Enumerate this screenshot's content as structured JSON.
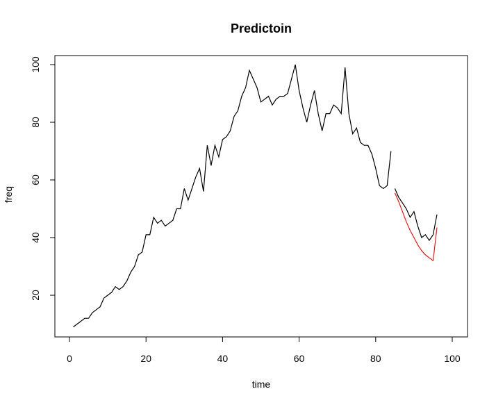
{
  "chart_data": {
    "type": "line",
    "title": "Predictoin",
    "xlabel": "time",
    "ylabel": "freq",
    "xlim": [
      0,
      100
    ],
    "ylim": [
      5,
      103
    ],
    "xticks": [
      0,
      20,
      40,
      60,
      80,
      100
    ],
    "yticks": [
      20,
      40,
      60,
      80,
      100
    ],
    "grid": false,
    "series": [
      {
        "color": "#000000",
        "points": [
          [
            1,
            9
          ],
          [
            2,
            10
          ],
          [
            3,
            11
          ],
          [
            4,
            12
          ],
          [
            5,
            12
          ],
          [
            6,
            14
          ],
          [
            7,
            15
          ],
          [
            8,
            16
          ],
          [
            9,
            19
          ],
          [
            10,
            20
          ],
          [
            11,
            21
          ],
          [
            12,
            23
          ],
          [
            13,
            22
          ],
          [
            14,
            23
          ],
          [
            15,
            25
          ],
          [
            16,
            28
          ],
          [
            17,
            30
          ],
          [
            18,
            34
          ],
          [
            19,
            35
          ],
          [
            20,
            41
          ],
          [
            21,
            41
          ],
          [
            22,
            47
          ],
          [
            23,
            45
          ],
          [
            24,
            46
          ],
          [
            25,
            44
          ],
          [
            26,
            45
          ],
          [
            27,
            46
          ],
          [
            28,
            50
          ],
          [
            29,
            50
          ],
          [
            30,
            57
          ],
          [
            31,
            53
          ],
          [
            32,
            57
          ],
          [
            33,
            61
          ],
          [
            34,
            64
          ],
          [
            35,
            56
          ],
          [
            36,
            72
          ],
          [
            37,
            65
          ],
          [
            38,
            72
          ],
          [
            39,
            68
          ],
          [
            40,
            74
          ],
          [
            41,
            75
          ],
          [
            42,
            77
          ],
          [
            43,
            82
          ],
          [
            44,
            84
          ],
          [
            45,
            89
          ],
          [
            46,
            92
          ],
          [
            47,
            98
          ],
          [
            48,
            95
          ],
          [
            49,
            92
          ],
          [
            50,
            87
          ],
          [
            51,
            88
          ],
          [
            52,
            89
          ],
          [
            53,
            86
          ],
          [
            54,
            88
          ],
          [
            55,
            89
          ],
          [
            56,
            89
          ],
          [
            57,
            90
          ],
          [
            58,
            95
          ],
          [
            59,
            100
          ],
          [
            60,
            91
          ],
          [
            61,
            85
          ],
          [
            62,
            80
          ],
          [
            63,
            86
          ],
          [
            64,
            91
          ],
          [
            65,
            83
          ],
          [
            66,
            77
          ],
          [
            67,
            83
          ],
          [
            68,
            83
          ],
          [
            69,
            86
          ],
          [
            70,
            85
          ],
          [
            71,
            83
          ],
          [
            72,
            99
          ],
          [
            73,
            83
          ],
          [
            74,
            76
          ],
          [
            75,
            78
          ],
          [
            76,
            73
          ],
          [
            77,
            72
          ],
          [
            78,
            72
          ],
          [
            79,
            69
          ],
          [
            80,
            64
          ],
          [
            81,
            58
          ],
          [
            82,
            57
          ],
          [
            83,
            58
          ],
          [
            84,
            70
          ]
        ]
      },
      {
        "color": "#000000",
        "points": [
          [
            85,
            57
          ],
          [
            86,
            54
          ],
          [
            87,
            52
          ],
          [
            88,
            50
          ],
          [
            89,
            47
          ],
          [
            90,
            49
          ],
          [
            91,
            44
          ],
          [
            92,
            40
          ],
          [
            93,
            41
          ],
          [
            94,
            39
          ],
          [
            95,
            41
          ],
          [
            96,
            48
          ]
        ]
      },
      {
        "color": "#e31a1c",
        "points": [
          [
            85,
            55.5
          ],
          [
            86,
            52.5
          ],
          [
            87,
            49
          ],
          [
            88,
            45.5
          ],
          [
            89,
            42.5
          ],
          [
            90,
            40
          ],
          [
            91,
            37.5
          ],
          [
            92,
            35.5
          ],
          [
            93,
            34
          ],
          [
            94,
            33
          ],
          [
            95,
            32
          ],
          [
            96,
            43.5
          ]
        ]
      }
    ]
  }
}
